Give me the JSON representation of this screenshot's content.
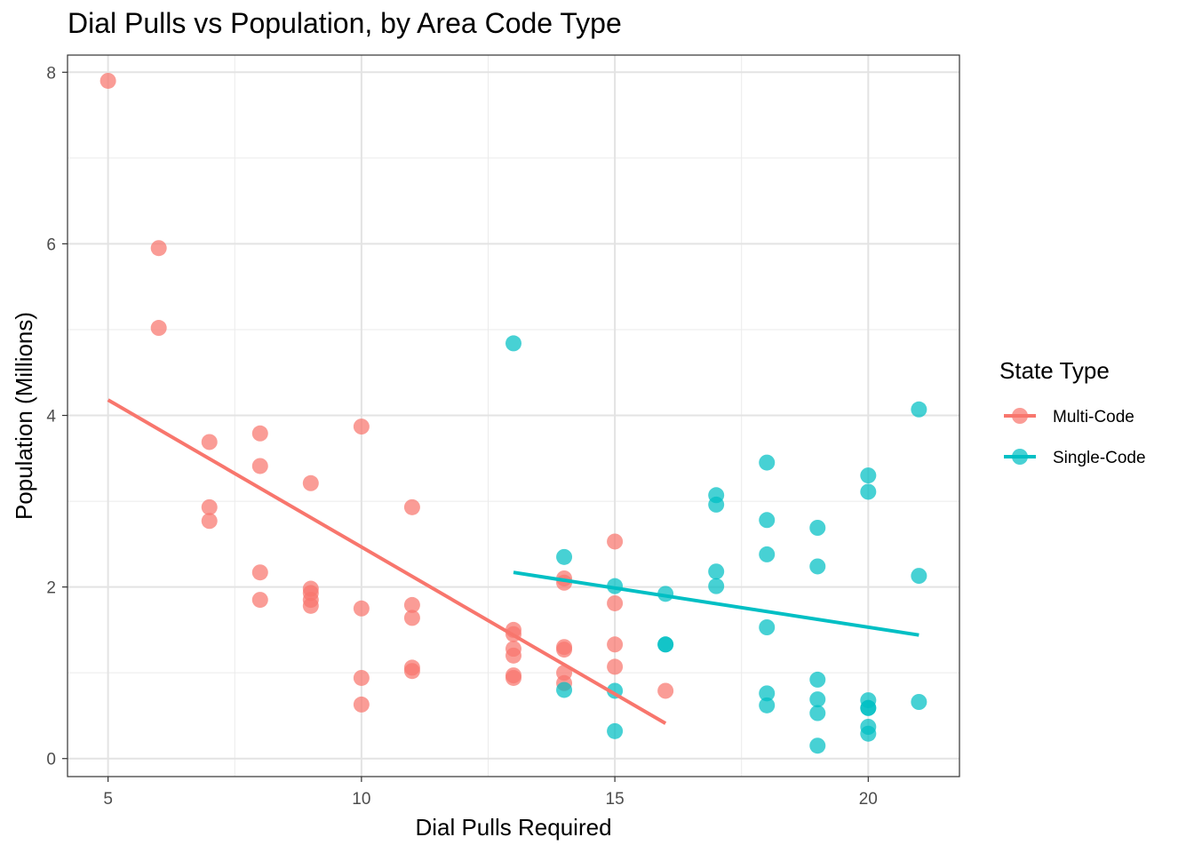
{
  "chart_data": {
    "type": "scatter",
    "title": "Dial Pulls vs Population, by Area Code Type",
    "xlabel": "Dial Pulls Required",
    "ylabel": "Population (Millions)",
    "xlim": [
      4.2,
      21.8
    ],
    "ylim": [
      -0.21,
      8.2
    ],
    "x_ticks": [
      5,
      10,
      15,
      20
    ],
    "y_ticks": [
      0,
      2,
      4,
      6,
      8
    ],
    "grid": true,
    "legend_title": "State Type",
    "legend_position": "right",
    "series": [
      {
        "name": "Multi-Code",
        "color": "#F8766D",
        "points": [
          [
            5,
            7.9
          ],
          [
            6,
            5.95
          ],
          [
            6,
            5.02
          ],
          [
            7,
            3.69
          ],
          [
            7,
            2.93
          ],
          [
            7,
            2.77
          ],
          [
            8,
            3.79
          ],
          [
            8,
            3.41
          ],
          [
            8,
            2.17
          ],
          [
            8,
            1.85
          ],
          [
            9,
            3.21
          ],
          [
            9,
            1.98
          ],
          [
            9,
            1.93
          ],
          [
            9,
            1.85
          ],
          [
            9,
            1.78
          ],
          [
            10,
            3.87
          ],
          [
            10,
            1.75
          ],
          [
            10,
            0.94
          ],
          [
            10,
            0.63
          ],
          [
            11,
            2.93
          ],
          [
            11,
            1.79
          ],
          [
            11,
            1.64
          ],
          [
            11,
            1.06
          ],
          [
            11,
            1.02
          ],
          [
            13,
            1.5
          ],
          [
            13,
            1.45
          ],
          [
            13,
            1.28
          ],
          [
            13,
            1.2
          ],
          [
            13,
            0.97
          ],
          [
            13,
            0.94
          ],
          [
            14,
            2.1
          ],
          [
            14,
            2.05
          ],
          [
            14,
            1.3
          ],
          [
            14,
            1.27
          ],
          [
            14,
            1.0
          ],
          [
            14,
            0.88
          ],
          [
            15,
            2.53
          ],
          [
            15,
            1.81
          ],
          [
            15,
            1.33
          ],
          [
            15,
            1.07
          ],
          [
            16,
            0.79
          ]
        ],
        "fit": {
          "x": [
            5,
            16
          ],
          "y": [
            4.18,
            0.41
          ]
        }
      },
      {
        "name": "Single-Code",
        "color": "#00BFC4",
        "points": [
          [
            13,
            4.84
          ],
          [
            14,
            2.35
          ],
          [
            14,
            0.8
          ],
          [
            15,
            2.01
          ],
          [
            15,
            0.79
          ],
          [
            15,
            0.32
          ],
          [
            16,
            1.92
          ],
          [
            16,
            1.33
          ],
          [
            16,
            1.33
          ],
          [
            17,
            3.07
          ],
          [
            17,
            2.96
          ],
          [
            17,
            2.18
          ],
          [
            17,
            2.01
          ],
          [
            18,
            3.45
          ],
          [
            18,
            2.78
          ],
          [
            18,
            2.38
          ],
          [
            18,
            1.53
          ],
          [
            18,
            0.76
          ],
          [
            18,
            0.62
          ],
          [
            19,
            2.69
          ],
          [
            19,
            2.24
          ],
          [
            19,
            0.92
          ],
          [
            19,
            0.69
          ],
          [
            19,
            0.53
          ],
          [
            19,
            0.15
          ],
          [
            20,
            3.3
          ],
          [
            20,
            3.11
          ],
          [
            20,
            0.68
          ],
          [
            20,
            0.59
          ],
          [
            20,
            0.59
          ],
          [
            20,
            0.37
          ],
          [
            20,
            0.29
          ],
          [
            21,
            4.07
          ],
          [
            21,
            2.13
          ],
          [
            21,
            0.66
          ]
        ],
        "fit": {
          "x": [
            13,
            21
          ],
          "y": [
            2.17,
            1.44
          ]
        }
      }
    ]
  }
}
